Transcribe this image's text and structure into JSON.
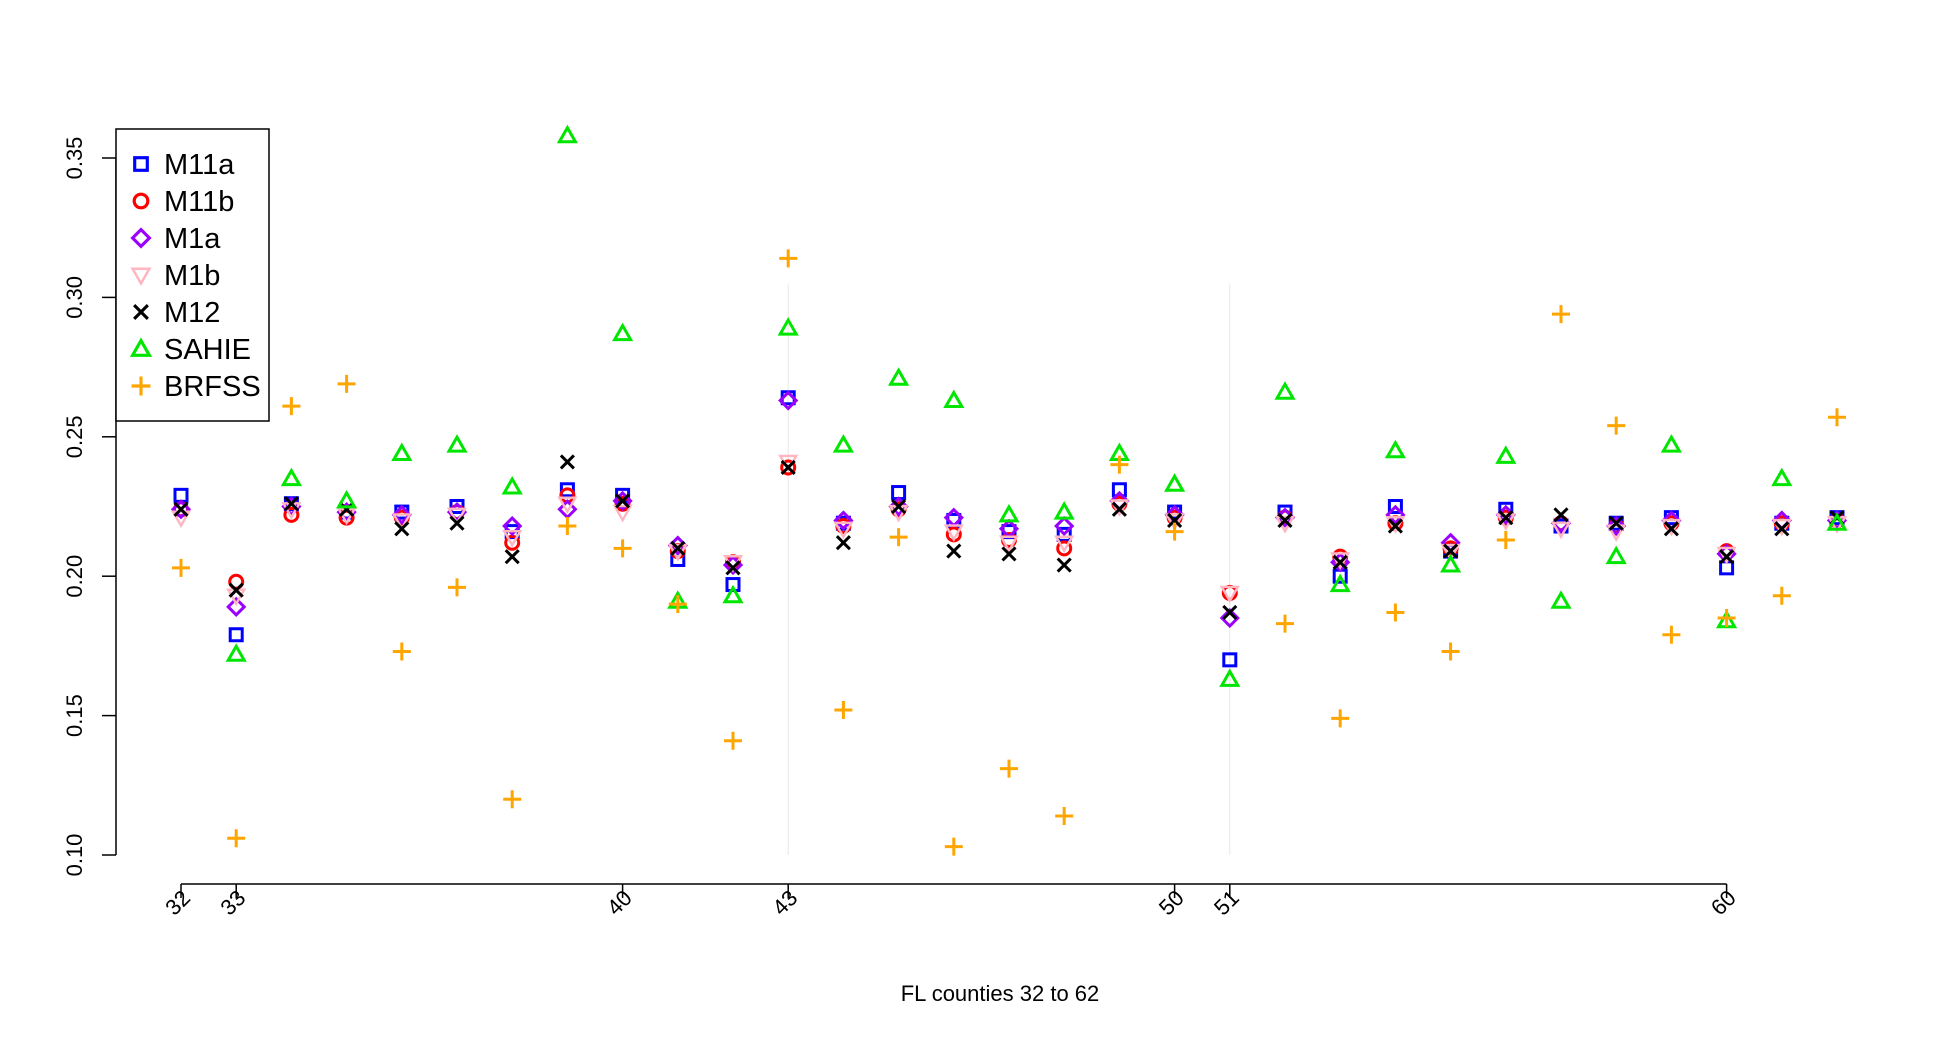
{
  "chart_data": {
    "type": "scatter",
    "title": "",
    "xlabel": "FL counties 32 to 62",
    "ylabel": "",
    "xlim": [
      32,
      62
    ],
    "ylim": [
      0.1,
      0.36
    ],
    "y_ticks": [
      0.1,
      0.15,
      0.2,
      0.25,
      0.3,
      0.35
    ],
    "y_tick_labels": [
      "0.10",
      "0.15",
      "0.20",
      "0.25",
      "0.30",
      "0.35"
    ],
    "x_ticks": [
      32,
      33,
      40,
      43,
      50,
      51,
      60
    ],
    "x_tick_labels": [
      "32",
      "33",
      "40",
      "43",
      "50",
      "51",
      "60"
    ],
    "reference_lines": [
      43,
      51
    ],
    "legend_position": "top-left",
    "x": [
      32,
      33,
      34,
      35,
      36,
      37,
      38,
      39,
      40,
      41,
      42,
      43,
      44,
      45,
      46,
      47,
      48,
      49,
      50,
      51,
      52,
      53,
      54,
      55,
      56,
      57,
      58,
      59,
      60,
      61,
      62
    ],
    "series": [
      {
        "name": "M11a",
        "marker": "square",
        "color": "#0000ff",
        "values": [
          0.229,
          0.179,
          0.226,
          0.223,
          0.223,
          0.225,
          0.216,
          0.231,
          0.229,
          0.206,
          0.197,
          0.264,
          0.219,
          0.23,
          0.22,
          0.216,
          0.215,
          0.231,
          0.223,
          0.17,
          0.223,
          0.2,
          0.225,
          0.209,
          0.224,
          0.218,
          0.219,
          0.221,
          0.203,
          0.219,
          0.221
        ]
      },
      {
        "name": "M11b",
        "marker": "circle",
        "color": "#ff0000",
        "values": [
          0.224,
          0.198,
          0.222,
          0.221,
          0.221,
          0.223,
          0.212,
          0.229,
          0.226,
          0.209,
          0.205,
          0.239,
          0.218,
          0.224,
          0.215,
          0.213,
          0.21,
          0.226,
          0.221,
          0.194,
          0.221,
          0.207,
          0.219,
          0.21,
          0.221,
          0.219,
          0.218,
          0.219,
          0.209,
          0.219,
          0.22
        ]
      },
      {
        "name": "M1a",
        "marker": "diamond",
        "color": "#9a00ff",
        "values": [
          0.224,
          0.189,
          0.225,
          0.223,
          0.222,
          0.223,
          0.218,
          0.224,
          0.227,
          0.211,
          0.204,
          0.263,
          0.22,
          0.225,
          0.221,
          0.217,
          0.218,
          0.227,
          0.222,
          0.185,
          0.221,
          0.205,
          0.222,
          0.212,
          0.222,
          0.219,
          0.218,
          0.22,
          0.208,
          0.22,
          0.22
        ]
      },
      {
        "name": "M1b",
        "marker": "triangle-down",
        "color": "#ffb6c1",
        "values": [
          0.221,
          0.193,
          0.224,
          0.222,
          0.22,
          0.222,
          0.214,
          0.226,
          0.223,
          0.209,
          0.205,
          0.241,
          0.217,
          0.223,
          0.216,
          0.212,
          0.212,
          0.225,
          0.22,
          0.194,
          0.219,
          0.206,
          0.219,
          0.209,
          0.22,
          0.217,
          0.216,
          0.218,
          0.208,
          0.218,
          0.219
        ]
      },
      {
        "name": "M12",
        "marker": "x",
        "color": "#000000",
        "values": [
          0.224,
          0.195,
          0.226,
          0.224,
          0.217,
          0.219,
          0.207,
          0.241,
          0.227,
          0.21,
          0.203,
          0.239,
          0.212,
          0.225,
          0.209,
          0.208,
          0.204,
          0.224,
          0.22,
          0.187,
          0.22,
          0.205,
          0.218,
          0.209,
          0.221,
          0.222,
          0.219,
          0.217,
          0.207,
          0.217,
          0.221
        ]
      },
      {
        "name": "SAHIE",
        "marker": "triangle",
        "color": "#00e600",
        "values": [
          null,
          0.172,
          0.235,
          0.227,
          0.244,
          0.247,
          0.232,
          0.358,
          0.287,
          0.191,
          0.193,
          0.289,
          0.247,
          0.271,
          0.263,
          0.222,
          0.223,
          0.244,
          0.233,
          0.163,
          0.266,
          0.197,
          0.245,
          0.204,
          0.243,
          0.191,
          0.207,
          0.247,
          0.184,
          0.235,
          0.219
        ]
      },
      {
        "name": "BRFSS",
        "marker": "plus",
        "color": "#ffa500",
        "values": [
          0.203,
          0.106,
          0.261,
          0.269,
          0.173,
          0.196,
          0.12,
          0.218,
          0.21,
          0.19,
          0.141,
          0.314,
          0.152,
          0.214,
          0.103,
          0.131,
          0.114,
          0.24,
          0.216,
          null,
          0.183,
          0.149,
          0.187,
          0.173,
          0.213,
          0.294,
          0.254,
          0.179,
          0.185,
          0.193,
          0.257
        ]
      }
    ]
  }
}
